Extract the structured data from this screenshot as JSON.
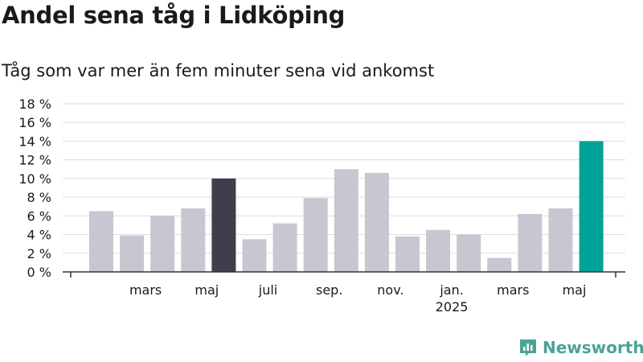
{
  "title": "Andel sena tåg i Lidköping",
  "subtitle": "Tåg som var mer än fem minuter sena vid ankomst",
  "brand": {
    "name": "Newsworthy",
    "icon": "newsworthy-logo-icon"
  },
  "colors": {
    "bar": "#c8c6d1",
    "highlight_dark": "#3f3e4b",
    "highlight_latest": "#00a397",
    "grid": "#dddddd",
    "axis": "#333333",
    "brand": "#4aa39a"
  },
  "chart_data": {
    "type": "bar",
    "title": "Andel sena tåg i Lidköping",
    "subtitle": "Tåg som var mer än fem minuter sena vid ankomst",
    "xlabel": "",
    "ylabel": "",
    "ylim": [
      0,
      18
    ],
    "y_ticks": [
      0,
      2,
      4,
      6,
      8,
      10,
      12,
      14,
      16,
      18
    ],
    "y_tick_labels": [
      "0 %",
      "2 %",
      "4 %",
      "6 %",
      "8 %",
      "10 %",
      "12 %",
      "14 %",
      "16 %",
      "18 %"
    ],
    "grid": true,
    "x_tick_labels": [
      {
        "label": "mars",
        "index": 1
      },
      {
        "label": "maj",
        "index": 3
      },
      {
        "label": "juli",
        "index": 5
      },
      {
        "label": "sep.",
        "index": 7
      },
      {
        "label": "nov.",
        "index": 9
      },
      {
        "label": "jan.",
        "sub": "2025",
        "index": 11
      },
      {
        "label": "mars",
        "index": 13
      },
      {
        "label": "maj",
        "index": 15
      }
    ],
    "values": [
      6.5,
      3.9,
      6.0,
      6.8,
      10.0,
      3.5,
      5.2,
      7.9,
      11.0,
      10.6,
      3.8,
      4.5,
      4.0,
      1.5,
      6.2,
      6.8,
      14.0
    ],
    "highlight": {
      "4": "dark",
      "16": "latest"
    }
  }
}
